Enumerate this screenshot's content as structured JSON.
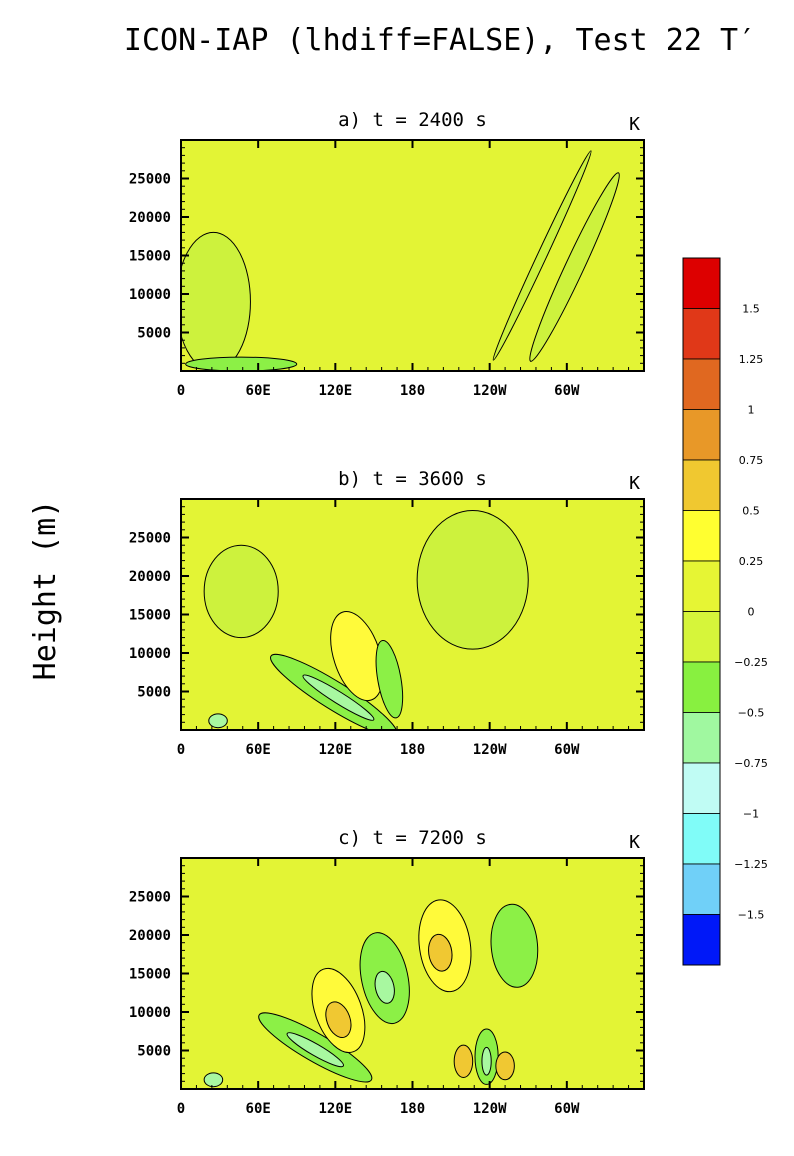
{
  "figure": {
    "title": "ICON-IAP (lhdiff=FALSE), Test 22 T′",
    "ylabel": "Height (m)"
  },
  "chart_data": [
    {
      "type": "heatmap",
      "title": "a) t = 2400 s",
      "unit": "K",
      "x_ticks": [
        "0",
        "60E",
        "120E",
        "180",
        "120W",
        "60W"
      ],
      "y_ticks": [
        25000,
        20000,
        15000,
        10000,
        5000
      ],
      "ylim": [
        0,
        30000
      ],
      "xlim_degrees": [
        0,
        360
      ]
    },
    {
      "type": "heatmap",
      "title": "b) t = 3600 s",
      "unit": "K",
      "x_ticks": [
        "0",
        "60E",
        "120E",
        "180",
        "120W",
        "60W"
      ],
      "y_ticks": [
        25000,
        20000,
        15000,
        10000,
        5000
      ],
      "ylim": [
        0,
        30000
      ],
      "xlim_degrees": [
        0,
        360
      ]
    },
    {
      "type": "heatmap",
      "title": "c) t = 7200 s",
      "unit": "K",
      "x_ticks": [
        "0",
        "60E",
        "120E",
        "180",
        "120W",
        "60W"
      ],
      "y_ticks": [
        25000,
        20000,
        15000,
        10000,
        5000
      ],
      "ylim": [
        0,
        30000
      ],
      "xlim_degrees": [
        0,
        360
      ]
    }
  ],
  "colorbar": {
    "labels": [
      "1.5",
      "1.25",
      "1",
      "0.75",
      "0.5",
      "0.25",
      "0",
      "−0.25",
      "−0.5",
      "−0.75",
      "−1",
      "−1.25",
      "−1.5"
    ],
    "colors": [
      "#dd0000",
      "#e03818",
      "#e06820",
      "#e89828",
      "#f0c830",
      "#ffff30",
      "#e6f534",
      "#d6f53a",
      "#88f040",
      "#a0f8a0",
      "#c0fcf4",
      "#80fcf8",
      "#70d0f8",
      "#0018f8"
    ]
  },
  "colors": {
    "background_field": "#e3f435",
    "green_light": "#cdf23d",
    "yellow": "#fffa3a",
    "orange": "#f0c832",
    "green": "#8cf046",
    "light_green": "#a8f8a0",
    "cyan_light": "#c0fcf4"
  }
}
